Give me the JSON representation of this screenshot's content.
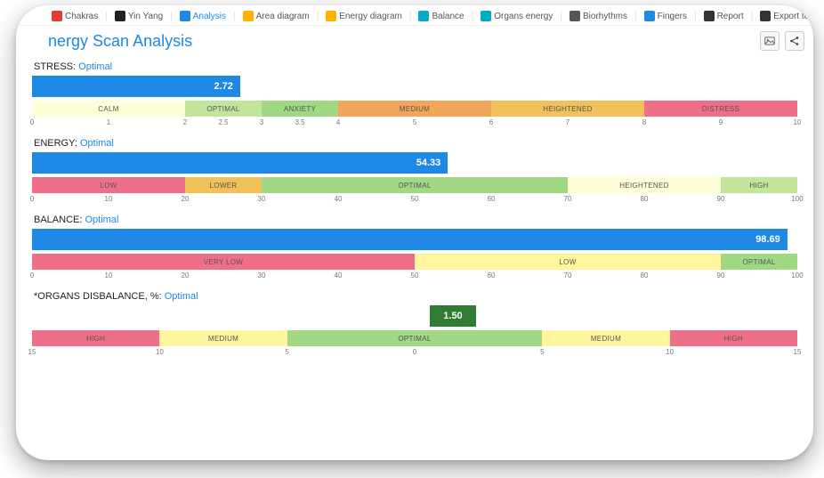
{
  "tabs": [
    {
      "label": "Chakras",
      "icon_color": "#e53935"
    },
    {
      "label": "Yin Yang",
      "icon_color": "#222"
    },
    {
      "label": "Analysis",
      "icon_color": "#1e88e5",
      "active": true
    },
    {
      "label": "Area diagram",
      "icon_color": "#ffb300"
    },
    {
      "label": "Energy diagram",
      "icon_color": "#ffb300"
    },
    {
      "label": "Balance",
      "icon_color": "#00acc1"
    },
    {
      "label": "Organs energy",
      "icon_color": "#00acc1"
    },
    {
      "label": "Biorhythms",
      "icon_color": "#555"
    },
    {
      "label": "Fingers",
      "icon_color": "#1e88e5"
    },
    {
      "label": "Report",
      "icon_color": "#333"
    },
    {
      "label": "Export to CSV",
      "icon_color": "#333"
    }
  ],
  "title": "nergy Scan Analysis",
  "toolbar": {
    "image_title": "Image",
    "share_title": "Share"
  },
  "metrics": {
    "stress": {
      "label": "STRESS:",
      "status": "Optimal",
      "value": "2.72",
      "value_raw": 2.72,
      "range_min": 0,
      "range_max": 10,
      "fill_color": "#1e88e5",
      "zones": [
        {
          "label": "CALM",
          "color": "#feffd6",
          "width_pct": 20
        },
        {
          "label": "OPTIMAL",
          "color": "#c2e59c",
          "width_pct": 10
        },
        {
          "label": "ANXIETY",
          "color": "#a1d884",
          "width_pct": 10
        },
        {
          "label": "MEDIUM",
          "color": "#f2a65a",
          "width_pct": 20
        },
        {
          "label": "HEIGHTENED",
          "color": "#f2c15a",
          "width_pct": 20
        },
        {
          "label": "DISTRESS",
          "color": "#ef6f88",
          "width_pct": 20
        }
      ],
      "ticks": [
        {
          "label": "0",
          "pos": 0
        },
        {
          "label": "1",
          "pos": 10
        },
        {
          "label": "2",
          "pos": 20
        },
        {
          "label": "2.5",
          "pos": 25
        },
        {
          "label": "3",
          "pos": 30
        },
        {
          "label": "3.5",
          "pos": 35
        },
        {
          "label": "4",
          "pos": 40
        },
        {
          "label": "5",
          "pos": 50
        },
        {
          "label": "6",
          "pos": 60
        },
        {
          "label": "7",
          "pos": 70
        },
        {
          "label": "8",
          "pos": 80
        },
        {
          "label": "9",
          "pos": 90
        },
        {
          "label": "10",
          "pos": 100
        }
      ]
    },
    "energy": {
      "label": "ENERGY:",
      "status": "Optimal",
      "value": "54.33",
      "value_raw": 54.33,
      "range_min": 0,
      "range_max": 100,
      "fill_color": "#1e88e5",
      "zones": [
        {
          "label": "LOW",
          "color": "#ef6f88",
          "width_pct": 20
        },
        {
          "label": "LOWER",
          "color": "#f2c15a",
          "width_pct": 10
        },
        {
          "label": "OPTIMAL",
          "color": "#a1d884",
          "width_pct": 40
        },
        {
          "label": "HEIGHTENED",
          "color": "#feffd6",
          "width_pct": 20
        },
        {
          "label": "HIGH",
          "color": "#c2e59c",
          "width_pct": 10
        }
      ],
      "ticks": [
        {
          "label": "0",
          "pos": 0
        },
        {
          "label": "10",
          "pos": 10
        },
        {
          "label": "20",
          "pos": 20
        },
        {
          "label": "30",
          "pos": 30
        },
        {
          "label": "40",
          "pos": 40
        },
        {
          "label": "50",
          "pos": 50
        },
        {
          "label": "60",
          "pos": 60
        },
        {
          "label": "70",
          "pos": 70
        },
        {
          "label": "80",
          "pos": 80
        },
        {
          "label": "90",
          "pos": 90
        },
        {
          "label": "100",
          "pos": 100
        }
      ]
    },
    "balance": {
      "label": "BALANCE:",
      "status": "Optimal",
      "value": "98.69",
      "value_raw": 98.69,
      "range_min": 0,
      "range_max": 100,
      "fill_color": "#1e88e5",
      "zones": [
        {
          "label": "VERY LOW",
          "color": "#ef6f88",
          "width_pct": 50
        },
        {
          "label": "LOW",
          "color": "#fff59d",
          "width_pct": 40
        },
        {
          "label": "OPTIMAL",
          "color": "#a1d884",
          "width_pct": 10
        }
      ],
      "ticks": [
        {
          "label": "0",
          "pos": 0
        },
        {
          "label": "10",
          "pos": 10
        },
        {
          "label": "20",
          "pos": 20
        },
        {
          "label": "30",
          "pos": 30
        },
        {
          "label": "40",
          "pos": 40
        },
        {
          "label": "50",
          "pos": 50
        },
        {
          "label": "60",
          "pos": 60
        },
        {
          "label": "70",
          "pos": 70
        },
        {
          "label": "80",
          "pos": 80
        },
        {
          "label": "90",
          "pos": 90
        },
        {
          "label": "100",
          "pos": 100
        }
      ]
    },
    "organs": {
      "label": "*ORGANS DISBALANCE, %:",
      "status": "Optimal",
      "value": "1.50",
      "value_raw": 1.5,
      "range_min": -15,
      "range_max": 15,
      "fill_color": "#2e7d32",
      "indicator_width_pct": 6,
      "zones": [
        {
          "label": "HIGH",
          "color": "#ef6f88",
          "width_pct": 16.67
        },
        {
          "label": "MEDIUM",
          "color": "#fff59d",
          "width_pct": 16.67
        },
        {
          "label": "OPTIMAL",
          "color": "#a1d884",
          "width_pct": 33.33
        },
        {
          "label": "MEDIUM",
          "color": "#fff59d",
          "width_pct": 16.67
        },
        {
          "label": "HIGH",
          "color": "#ef6f88",
          "width_pct": 16.67
        }
      ],
      "ticks": [
        {
          "label": "15",
          "pos": 0
        },
        {
          "label": "10",
          "pos": 16.67
        },
        {
          "label": "5",
          "pos": 33.33
        },
        {
          "label": "0",
          "pos": 50
        },
        {
          "label": "5",
          "pos": 66.67
        },
        {
          "label": "10",
          "pos": 83.33
        },
        {
          "label": "15",
          "pos": 100
        }
      ]
    }
  }
}
